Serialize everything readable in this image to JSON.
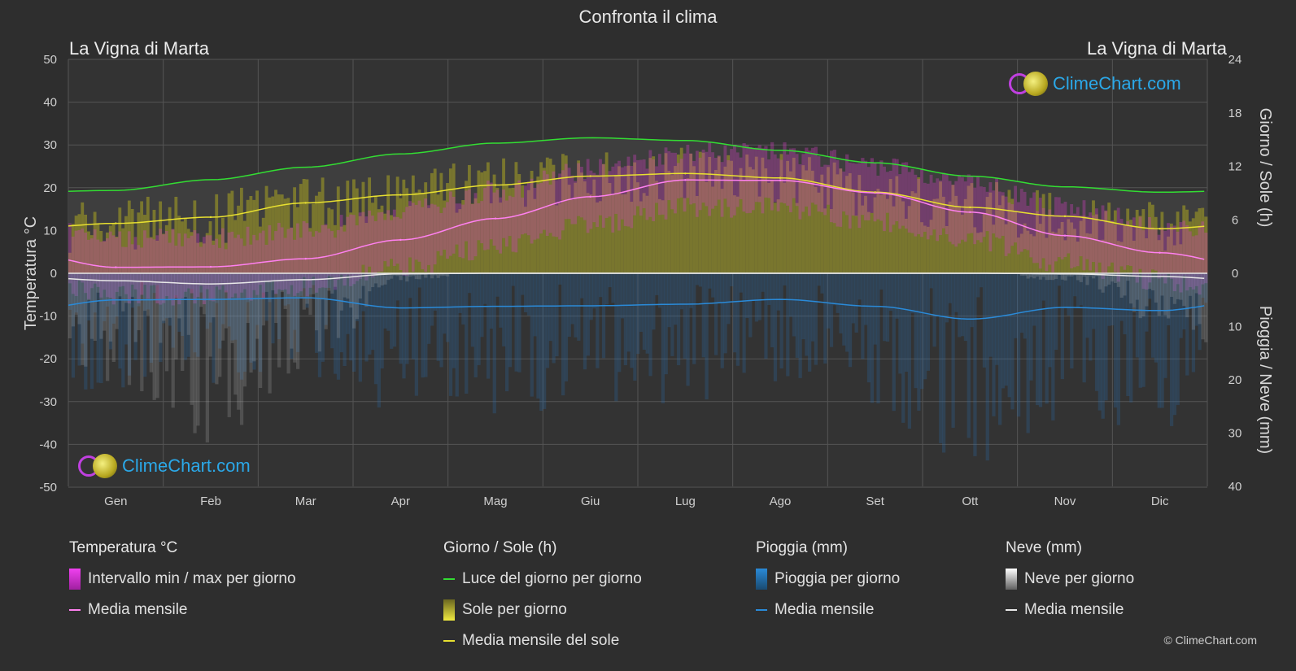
{
  "title": "Confronta il clima",
  "location_left": "La Vigna di Marta",
  "location_right": "La Vigna di Marta",
  "logo_text": "ClimeChart.com",
  "copyright": "© ClimeChart.com",
  "axes": {
    "left_title": "Temperatura °C",
    "right_top_title": "Giorno / Sole (h)",
    "right_bottom_title": "Pioggia / Neve (mm)",
    "left_ticks": [
      "50",
      "40",
      "30",
      "20",
      "10",
      "0",
      "-10",
      "-20",
      "-30",
      "-40",
      "-50"
    ],
    "right_top_ticks": [
      "24",
      "18",
      "12",
      "6",
      "0"
    ],
    "right_bottom_ticks": [
      "10",
      "20",
      "30",
      "40"
    ]
  },
  "legend": {
    "temp": {
      "title": "Temperatura °C",
      "range": "Intervallo min / max per giorno",
      "mean": "Media mensile"
    },
    "sun": {
      "title": "Giorno / Sole (h)",
      "daylight": "Luce del giorno per giorno",
      "sun_day": "Sole per giorno",
      "sun_mean": "Media mensile del sole"
    },
    "rain": {
      "title": "Pioggia (mm)",
      "rain_day": "Pioggia per giorno",
      "mean": "Media mensile"
    },
    "snow": {
      "title": "Neve (mm)",
      "snow_day": "Neve per giorno",
      "mean": "Media mensile"
    }
  },
  "colors": {
    "daylight": "#33dd33",
    "sun_mean": "#e8e030",
    "sun_fill": "#9a9628",
    "temp_mean": "#ff80f0",
    "temp_range": "#d040c0",
    "rain": "#2a8ad8",
    "snow": "#e8e8e8",
    "logo_text": "#2ba8e8"
  },
  "chart_data": {
    "type": "area",
    "categories": [
      "Gen",
      "Feb",
      "Mar",
      "Apr",
      "Mag",
      "Giu",
      "Lug",
      "Ago",
      "Set",
      "Ott",
      "Nov",
      "Dic"
    ],
    "temp_ylim": [
      -50,
      50
    ],
    "hours_ylim": [
      0,
      24
    ],
    "precip_ylim": [
      0,
      40
    ],
    "series": [
      {
        "name": "Luce del giorno per giorno",
        "axis": "hours",
        "values": [
          9.3,
          10.5,
          11.9,
          13.4,
          14.6,
          15.2,
          14.9,
          13.8,
          12.4,
          10.9,
          9.7,
          9.1
        ]
      },
      {
        "name": "Media mensile del sole",
        "axis": "hours",
        "values": [
          5.6,
          6.3,
          7.9,
          8.8,
          9.9,
          10.9,
          11.2,
          10.7,
          9.1,
          7.4,
          6.4,
          5.0
        ]
      },
      {
        "name": "Media mensile",
        "axis": "temperature",
        "values": [
          1.4,
          1.5,
          3.4,
          7.8,
          12.8,
          17.9,
          21.8,
          21.7,
          18.8,
          14.3,
          8.8,
          4.8
        ]
      },
      {
        "name": "Pioggia: Media mensile",
        "axis": "precip",
        "values": [
          5.0,
          4.9,
          4.6,
          6.5,
          6.2,
          6.1,
          5.8,
          4.9,
          6.2,
          8.6,
          6.4,
          7.0
        ]
      },
      {
        "name": "Neve: Media mensile",
        "axis": "precip",
        "values": [
          1.4,
          2.0,
          1.2,
          0.1,
          0.0,
          0.0,
          0.0,
          0.0,
          0.0,
          0.0,
          0.1,
          0.6
        ]
      }
    ]
  }
}
